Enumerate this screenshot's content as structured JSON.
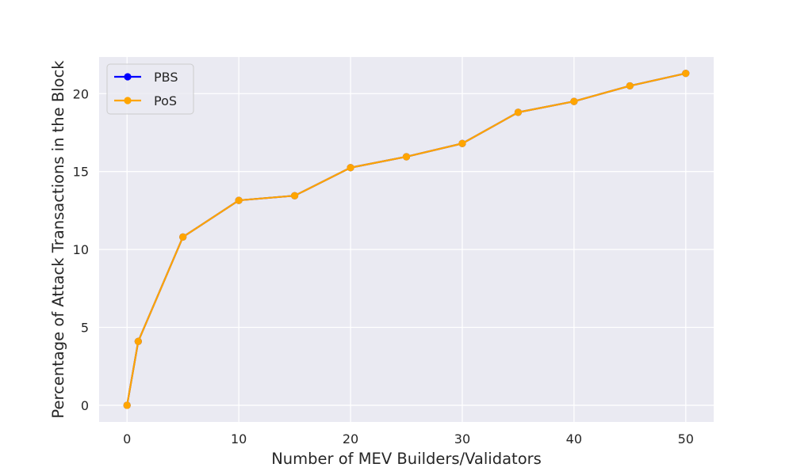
{
  "chart_data": {
    "type": "line",
    "title": "",
    "xlabel": "Number of MEV Builders/Validators",
    "ylabel": "Percentage of Attack Transactions in the Block",
    "xlim": [
      -2.5,
      52.5
    ],
    "ylim": [
      -1.07,
      22.35
    ],
    "xticks": [
      0,
      10,
      20,
      30,
      40,
      50
    ],
    "yticks": [
      0,
      5,
      10,
      15,
      20
    ],
    "grid": true,
    "legend_position": "upper-left",
    "x": [
      0,
      1,
      5,
      10,
      15,
      20,
      25,
      30,
      35,
      40,
      45,
      50
    ],
    "series": [
      {
        "name": "PBS",
        "color": "#0000ff",
        "values": [
          0.0,
          4.1,
          10.8,
          13.15,
          13.45,
          15.25,
          15.95,
          16.8,
          18.8,
          19.5,
          20.5,
          21.3
        ]
      },
      {
        "name": "PoS",
        "color": "#ffa500",
        "values": [
          0.0,
          4.1,
          10.8,
          13.15,
          13.45,
          15.25,
          15.95,
          16.8,
          18.8,
          19.5,
          20.5,
          21.3
        ]
      }
    ],
    "plot_background": "#eaeaf2",
    "grid_color": "#ffffff"
  }
}
